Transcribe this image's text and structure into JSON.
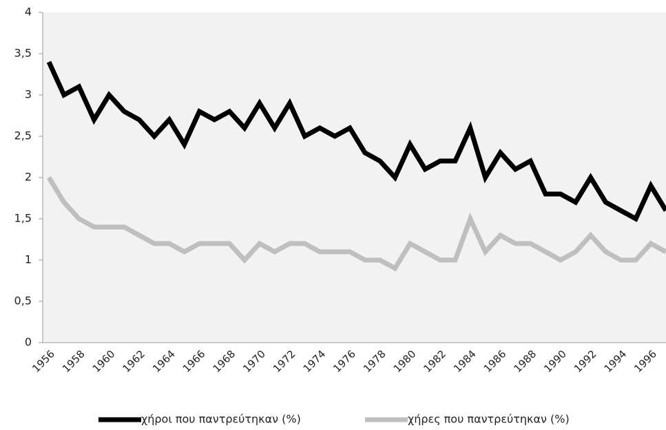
{
  "chart_data": {
    "type": "line",
    "categories": [
      "1956",
      null,
      "1958",
      null,
      "1960",
      null,
      "1962",
      null,
      "1964",
      null,
      "1966",
      null,
      "1968",
      null,
      "1970",
      null,
      "1972",
      null,
      "1974",
      null,
      "1976",
      null,
      "1978",
      null,
      "1980",
      null,
      "1982",
      null,
      "1984",
      null,
      "1986",
      null,
      "1988",
      null,
      "1990",
      null,
      "1992",
      null,
      "1994",
      null,
      "1996",
      null
    ],
    "series": [
      {
        "name": "χήροι που παντρεύτηκαν (%)",
        "color": "#000000",
        "values": [
          3.4,
          3.0,
          3.1,
          2.7,
          3.0,
          2.8,
          2.7,
          2.5,
          2.7,
          2.4,
          2.8,
          2.7,
          2.8,
          2.6,
          2.9,
          2.6,
          2.9,
          2.5,
          2.6,
          2.5,
          2.6,
          2.3,
          2.2,
          2.0,
          2.4,
          2.1,
          2.2,
          2.2,
          2.6,
          2.0,
          2.3,
          2.1,
          2.2,
          1.8,
          1.8,
          1.7,
          2.0,
          1.7,
          1.6,
          1.5,
          1.9,
          1.6
        ]
      },
      {
        "name": "χήρες που παντρεύτηκαν (%)",
        "color": "#bfbfbf",
        "values": [
          2.0,
          1.7,
          1.5,
          1.4,
          1.4,
          1.4,
          1.3,
          1.2,
          1.2,
          1.1,
          1.2,
          1.2,
          1.2,
          1.0,
          1.2,
          1.1,
          1.2,
          1.2,
          1.1,
          1.1,
          1.1,
          1.0,
          1.0,
          0.9,
          1.2,
          1.1,
          1.0,
          1.0,
          1.5,
          1.1,
          1.3,
          1.2,
          1.2,
          1.1,
          1.0,
          1.1,
          1.3,
          1.1,
          1.0,
          1.0,
          1.2,
          1.1
        ]
      }
    ],
    "ylim": [
      0,
      4
    ],
    "yticks": [
      0,
      {
        "value": 0.5,
        "label": "0,5"
      },
      1,
      {
        "value": 1.5,
        "label": "1,5"
      },
      2,
      {
        "value": 2.5,
        "label": "2,5"
      },
      3,
      {
        "value": 3.5,
        "label": "3,5"
      },
      4
    ],
    "legend": "bottom"
  }
}
